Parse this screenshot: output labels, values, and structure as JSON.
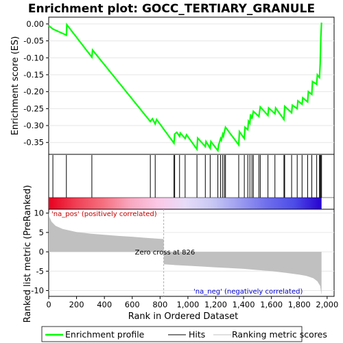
{
  "chart_data": {
    "type": "line",
    "title": "Enrichment plot: GOCC_TERTIARY_GRANULE",
    "es_panel": {
      "ylabel": "Enrichment score (ES)",
      "yticks": [
        0.0,
        -0.05,
        -0.1,
        -0.15,
        -0.2,
        -0.25,
        -0.3,
        -0.35
      ],
      "ytick_labels": [
        "0.00",
        "-0.05",
        "-0.10",
        "-0.15",
        "-0.20",
        "-0.25",
        "-0.30",
        "-0.35"
      ],
      "ylim": [
        -0.385,
        0.02
      ],
      "series": [
        {
          "name": "Enrichment profile",
          "color": "#00ff00",
          "x": [
            0,
            30,
            127,
            130,
            310,
            315,
            730,
            745,
            765,
            775,
            900,
            905,
            920,
            940,
            945,
            980,
            990,
            1065,
            1070,
            1125,
            1130,
            1160,
            1165,
            1215,
            1220,
            1235,
            1240,
            1250,
            1255,
            1262,
            1270,
            1365,
            1370,
            1405,
            1410,
            1430,
            1435,
            1445,
            1450,
            1460,
            1470,
            1510,
            1520,
            1575,
            1580,
            1625,
            1630,
            1690,
            1695,
            1745,
            1750,
            1785,
            1790,
            1820,
            1825,
            1860,
            1865,
            1890,
            1895,
            1925,
            1930,
            1945,
            1950,
            1955,
            1960
          ],
          "y": [
            -0.005,
            -0.015,
            -0.033,
            -0.002,
            -0.098,
            -0.077,
            -0.288,
            -0.28,
            -0.295,
            -0.282,
            -0.352,
            -0.325,
            -0.32,
            -0.332,
            -0.322,
            -0.338,
            -0.327,
            -0.37,
            -0.337,
            -0.362,
            -0.347,
            -0.367,
            -0.347,
            -0.374,
            -0.358,
            -0.338,
            -0.343,
            -0.325,
            -0.331,
            -0.318,
            -0.305,
            -0.357,
            -0.318,
            -0.338,
            -0.305,
            -0.312,
            -0.287,
            -0.293,
            -0.267,
            -0.28,
            -0.258,
            -0.273,
            -0.245,
            -0.27,
            -0.248,
            -0.265,
            -0.248,
            -0.282,
            -0.243,
            -0.262,
            -0.24,
            -0.25,
            -0.227,
            -0.237,
            -0.218,
            -0.23,
            -0.2,
            -0.208,
            -0.17,
            -0.178,
            -0.15,
            -0.158,
            -0.12,
            -0.04,
            0.004
          ]
        }
      ]
    },
    "hits_panel": {
      "hit_positions": [
        30,
        127,
        310,
        730,
        765,
        900,
        905,
        940,
        980,
        1065,
        1125,
        1160,
        1215,
        1235,
        1250,
        1262,
        1270,
        1365,
        1405,
        1430,
        1445,
        1460,
        1470,
        1510,
        1520,
        1575,
        1625,
        1690,
        1695,
        1745,
        1785,
        1820,
        1860,
        1890,
        1925,
        1945,
        1950,
        1955,
        1960
      ],
      "color_bands": [
        "#e8001e",
        "#f04055",
        "#f5707f",
        "#f8a8c0",
        "#fbc8e6",
        "#e6dcf8",
        "#c8c8f4",
        "#9c9cf0",
        "#6e6eec",
        "#4c4ce8",
        "#2800d0"
      ]
    },
    "metric_panel": {
      "ylabel": "Ranked list metric (PreRanked)",
      "xlabel": "Rank in Ordered Dataset",
      "yticks": [
        10,
        5,
        0,
        -5,
        -10
      ],
      "ytick_labels": [
        "10",
        "5",
        "0",
        "-5",
        "-10"
      ],
      "ylim": [
        -11.5,
        11
      ],
      "xticks": [
        0,
        200,
        400,
        600,
        800,
        1000,
        1200,
        1400,
        1600,
        1800,
        2000
      ],
      "xtick_labels": [
        "0",
        "200",
        "400",
        "600",
        "800",
        "1,000",
        "1,200",
        "1,400",
        "1,600",
        "1,800",
        "2,000"
      ],
      "xlim": [
        0,
        2050
      ],
      "n_genes": 1960,
      "zero_cross": 826,
      "zero_cross_label": "Zero cross at 826",
      "pos_label": "'na_pos' (positively correlated)",
      "neg_label": "'na_neg' (negatively correlated)",
      "pos_color": "#cc0000",
      "neg_color": "#0000cc",
      "fill_color": "#c0c0c0",
      "profile": {
        "rank": [
          0,
          5,
          20,
          50,
          100,
          200,
          300,
          400,
          500,
          600,
          700,
          826,
          827,
          900,
          1000,
          1100,
          1200,
          1300,
          1400,
          1500,
          1600,
          1700,
          1800,
          1850,
          1900,
          1930,
          1950,
          1960
        ],
        "value": [
          10.2,
          9.0,
          7.8,
          6.7,
          5.9,
          5.1,
          4.7,
          4.4,
          4.1,
          3.9,
          3.6,
          3.3,
          -3.2,
          -3.4,
          -3.6,
          -3.8,
          -4.0,
          -4.2,
          -4.4,
          -4.7,
          -5.0,
          -5.4,
          -5.9,
          -6.2,
          -6.8,
          -7.6,
          -8.8,
          -11.2
        ]
      }
    },
    "legend": {
      "entries": [
        {
          "label": "Enrichment profile",
          "color": "#00ff00",
          "style": "thick-line"
        },
        {
          "label": "Hits",
          "color": "#000000",
          "style": "thin-line"
        },
        {
          "label": "Ranking metric scores",
          "color": "#c0c0c0",
          "style": "thin-line"
        }
      ]
    }
  }
}
